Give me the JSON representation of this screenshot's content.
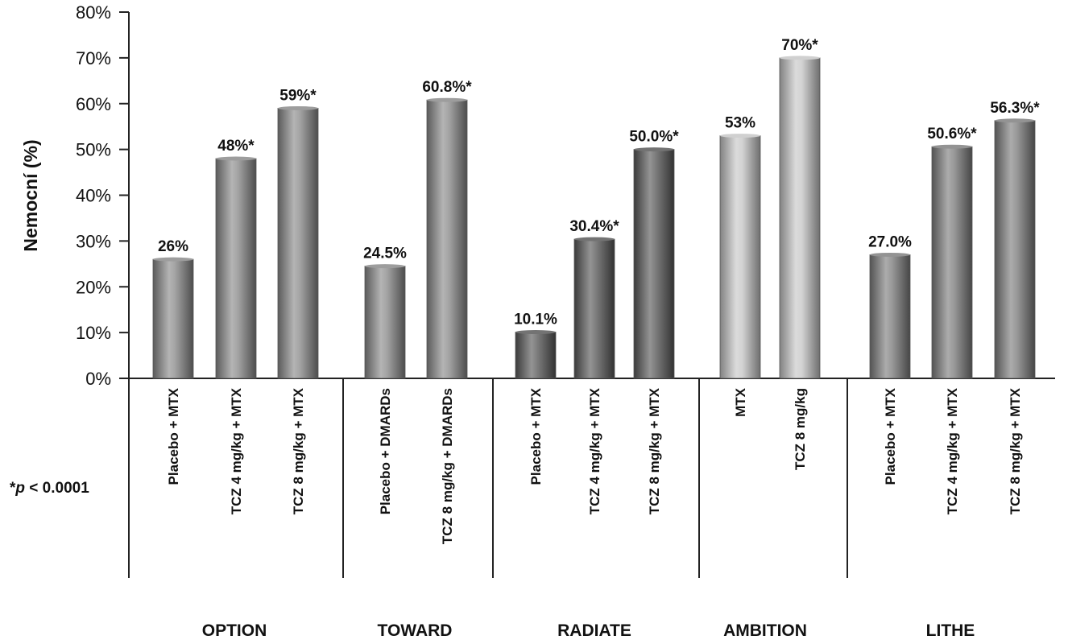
{
  "chart_data": {
    "type": "bar",
    "ylabel": "Nemocní (%)",
    "ylim": [
      0,
      80
    ],
    "yticks": [
      "0%",
      "10%",
      "20%",
      "30%",
      "40%",
      "50%",
      "60%",
      "70%",
      "80%"
    ],
    "grid": false,
    "footnote_prefix": "*",
    "footnote_p": "p",
    "footnote_rest": " < 0.0001",
    "groups": [
      {
        "name": "OPTION",
        "bars": [
          {
            "label": "Placebo + MTX",
            "value": 26,
            "text": "26%",
            "color": "#8c8c8c"
          },
          {
            "label": "TCZ 4 mg/kg + MTX",
            "value": 48,
            "text": "48%*",
            "color": "#8c8c8c"
          },
          {
            "label": "TCZ 8 mg/kg + MTX",
            "value": 59,
            "text": "59%*",
            "color": "#8c8c8c"
          }
        ]
      },
      {
        "name": "TOWARD",
        "bars": [
          {
            "label": "Placebo + DMARDs",
            "value": 24.5,
            "text": "24.5%",
            "color": "#8c8c8c"
          },
          {
            "label": "TCZ 8 mg/kg + DMARDs",
            "value": 60.8,
            "text": "60.8%*",
            "color": "#8c8c8c"
          }
        ]
      },
      {
        "name": "RADIATE",
        "bars": [
          {
            "label": "Placebo + MTX",
            "value": 10.1,
            "text": "10.1%",
            "color": "#5a5a5a"
          },
          {
            "label": "TCZ 4 mg/kg + MTX",
            "value": 30.4,
            "text": "30.4%*",
            "color": "#5a5a5a"
          },
          {
            "label": "TCZ 8 mg/kg + MTX",
            "value": 50.0,
            "text": "50.0%*",
            "color": "#5a5a5a"
          }
        ]
      },
      {
        "name": "AMBITION",
        "bars": [
          {
            "label": "MTX",
            "value": 53,
            "text": "53%",
            "color": "#c8c8c8"
          },
          {
            "label": "TCZ 8 mg/kg",
            "value": 70,
            "text": "70%*",
            "color": "#c8c8c8"
          }
        ]
      },
      {
        "name": "LITHE",
        "bars": [
          {
            "label": "Placebo + MTX",
            "value": 27.0,
            "text": "27.0%",
            "color": "#808080"
          },
          {
            "label": "TCZ 4 mg/kg + MTX",
            "value": 50.6,
            "text": "50.6%*",
            "color": "#808080"
          },
          {
            "label": "TCZ 8 mg/kg + MTX",
            "value": 56.3,
            "text": "56.3%*",
            "color": "#808080"
          }
        ]
      }
    ]
  }
}
